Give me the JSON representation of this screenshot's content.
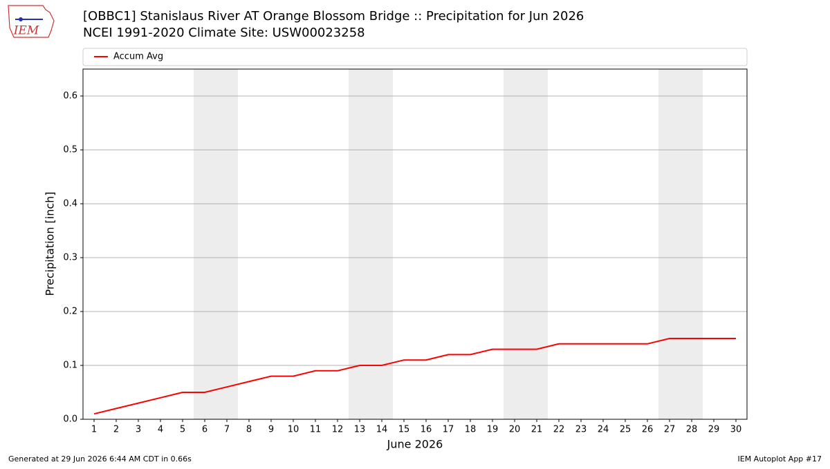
{
  "chart_data": {
    "type": "line",
    "title": "[OBBC1] Stanislaus River  AT Orange Blossom Bridge :: Precipitation for Jun 2026",
    "subtitle": "NCEI 1991-2020 Climate Site: USW00023258",
    "ylabel": "Precipitation [inch]",
    "xlabel": "June 2026",
    "x": [
      1,
      2,
      3,
      4,
      5,
      6,
      7,
      8,
      9,
      10,
      11,
      12,
      13,
      14,
      15,
      16,
      17,
      18,
      19,
      20,
      21,
      22,
      23,
      24,
      25,
      26,
      27,
      28,
      29,
      30
    ],
    "series": [
      {
        "name": "Accum Avg",
        "color": "#ff0000",
        "values": [
          0.01,
          0.02,
          0.03,
          0.04,
          0.05,
          0.05,
          0.06,
          0.07,
          0.08,
          0.08,
          0.09,
          0.09,
          0.1,
          0.1,
          0.11,
          0.11,
          0.12,
          0.12,
          0.13,
          0.13,
          0.13,
          0.14,
          0.14,
          0.14,
          0.14,
          0.14,
          0.15,
          0.15,
          0.15,
          0.15
        ]
      }
    ],
    "xlim": [
      0.5,
      30.5
    ],
    "xticks": [
      1,
      2,
      3,
      4,
      5,
      6,
      7,
      8,
      9,
      10,
      11,
      12,
      13,
      14,
      15,
      16,
      17,
      18,
      19,
      20,
      21,
      22,
      23,
      24,
      25,
      26,
      27,
      28,
      29,
      30
    ],
    "ylim": [
      0,
      0.65
    ],
    "yticks": [
      {
        "value": 0,
        "label": "0.0"
      },
      0.1,
      0.2,
      0.3,
      0.4,
      0.5,
      0.6
    ],
    "grid": true,
    "legend": "top",
    "shaded_days": [
      6,
      7,
      13,
      14,
      20,
      21,
      27,
      28
    ],
    "shade_color": "#ededed",
    "footer_left": "Generated at 29 Jun 2026 6:44 AM CDT in 0.66s",
    "footer_right": "IEM Autoplot App #17",
    "logo_text": "IEM"
  }
}
